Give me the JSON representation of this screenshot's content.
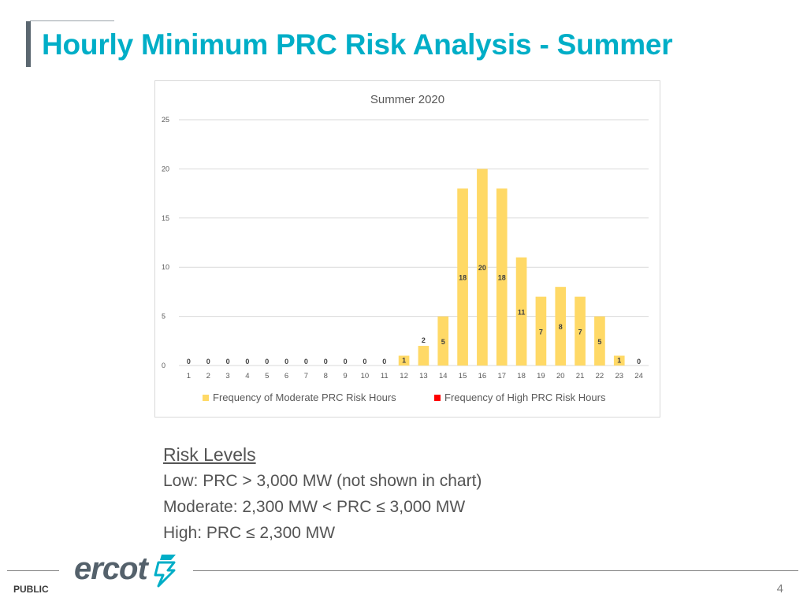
{
  "slide": {
    "title": "Hourly Minimum PRC Risk Analysis - Summer",
    "page_number": "4",
    "classification": "PUBLIC",
    "logo_text": "ercot"
  },
  "risk_levels": {
    "heading": "Risk Levels",
    "items": [
      "Low: PRC > 3,000 MW (not shown in chart)",
      "Moderate: 2,300 MW < PRC ≤ 3,000 MW",
      "High: PRC ≤ 2,300 MW"
    ]
  },
  "colors": {
    "title": "#00aec7",
    "moderate": "#ffd966",
    "high": "#ff0000",
    "grid": "#d9d9d9",
    "axis_text": "#595959"
  },
  "chart_data": {
    "type": "bar",
    "title": "Summer 2020",
    "xlabel": "",
    "ylabel": "",
    "categories": [
      "1",
      "2",
      "3",
      "4",
      "5",
      "6",
      "7",
      "8",
      "9",
      "10",
      "11",
      "12",
      "13",
      "14",
      "15",
      "16",
      "17",
      "18",
      "19",
      "20",
      "21",
      "22",
      "23",
      "24"
    ],
    "y_ticks": [
      "0",
      "5",
      "10",
      "15",
      "20",
      "25"
    ],
    "ylim": [
      0,
      25
    ],
    "grid": true,
    "legend_position": "bottom",
    "series": [
      {
        "name": "Frequency of Moderate PRC Risk Hours",
        "color": "#ffd966",
        "values": [
          0,
          0,
          0,
          0,
          0,
          0,
          0,
          0,
          0,
          0,
          0,
          1,
          2,
          5,
          18,
          20,
          18,
          11,
          7,
          8,
          7,
          5,
          1,
          0
        ]
      },
      {
        "name": "Frequency of High PRC Risk Hours",
        "color": "#ff0000",
        "values": [
          0,
          0,
          0,
          0,
          0,
          0,
          0,
          0,
          0,
          0,
          0,
          0,
          0,
          0,
          0,
          0,
          0,
          0,
          0,
          0,
          0,
          0,
          0,
          0
        ]
      }
    ]
  }
}
